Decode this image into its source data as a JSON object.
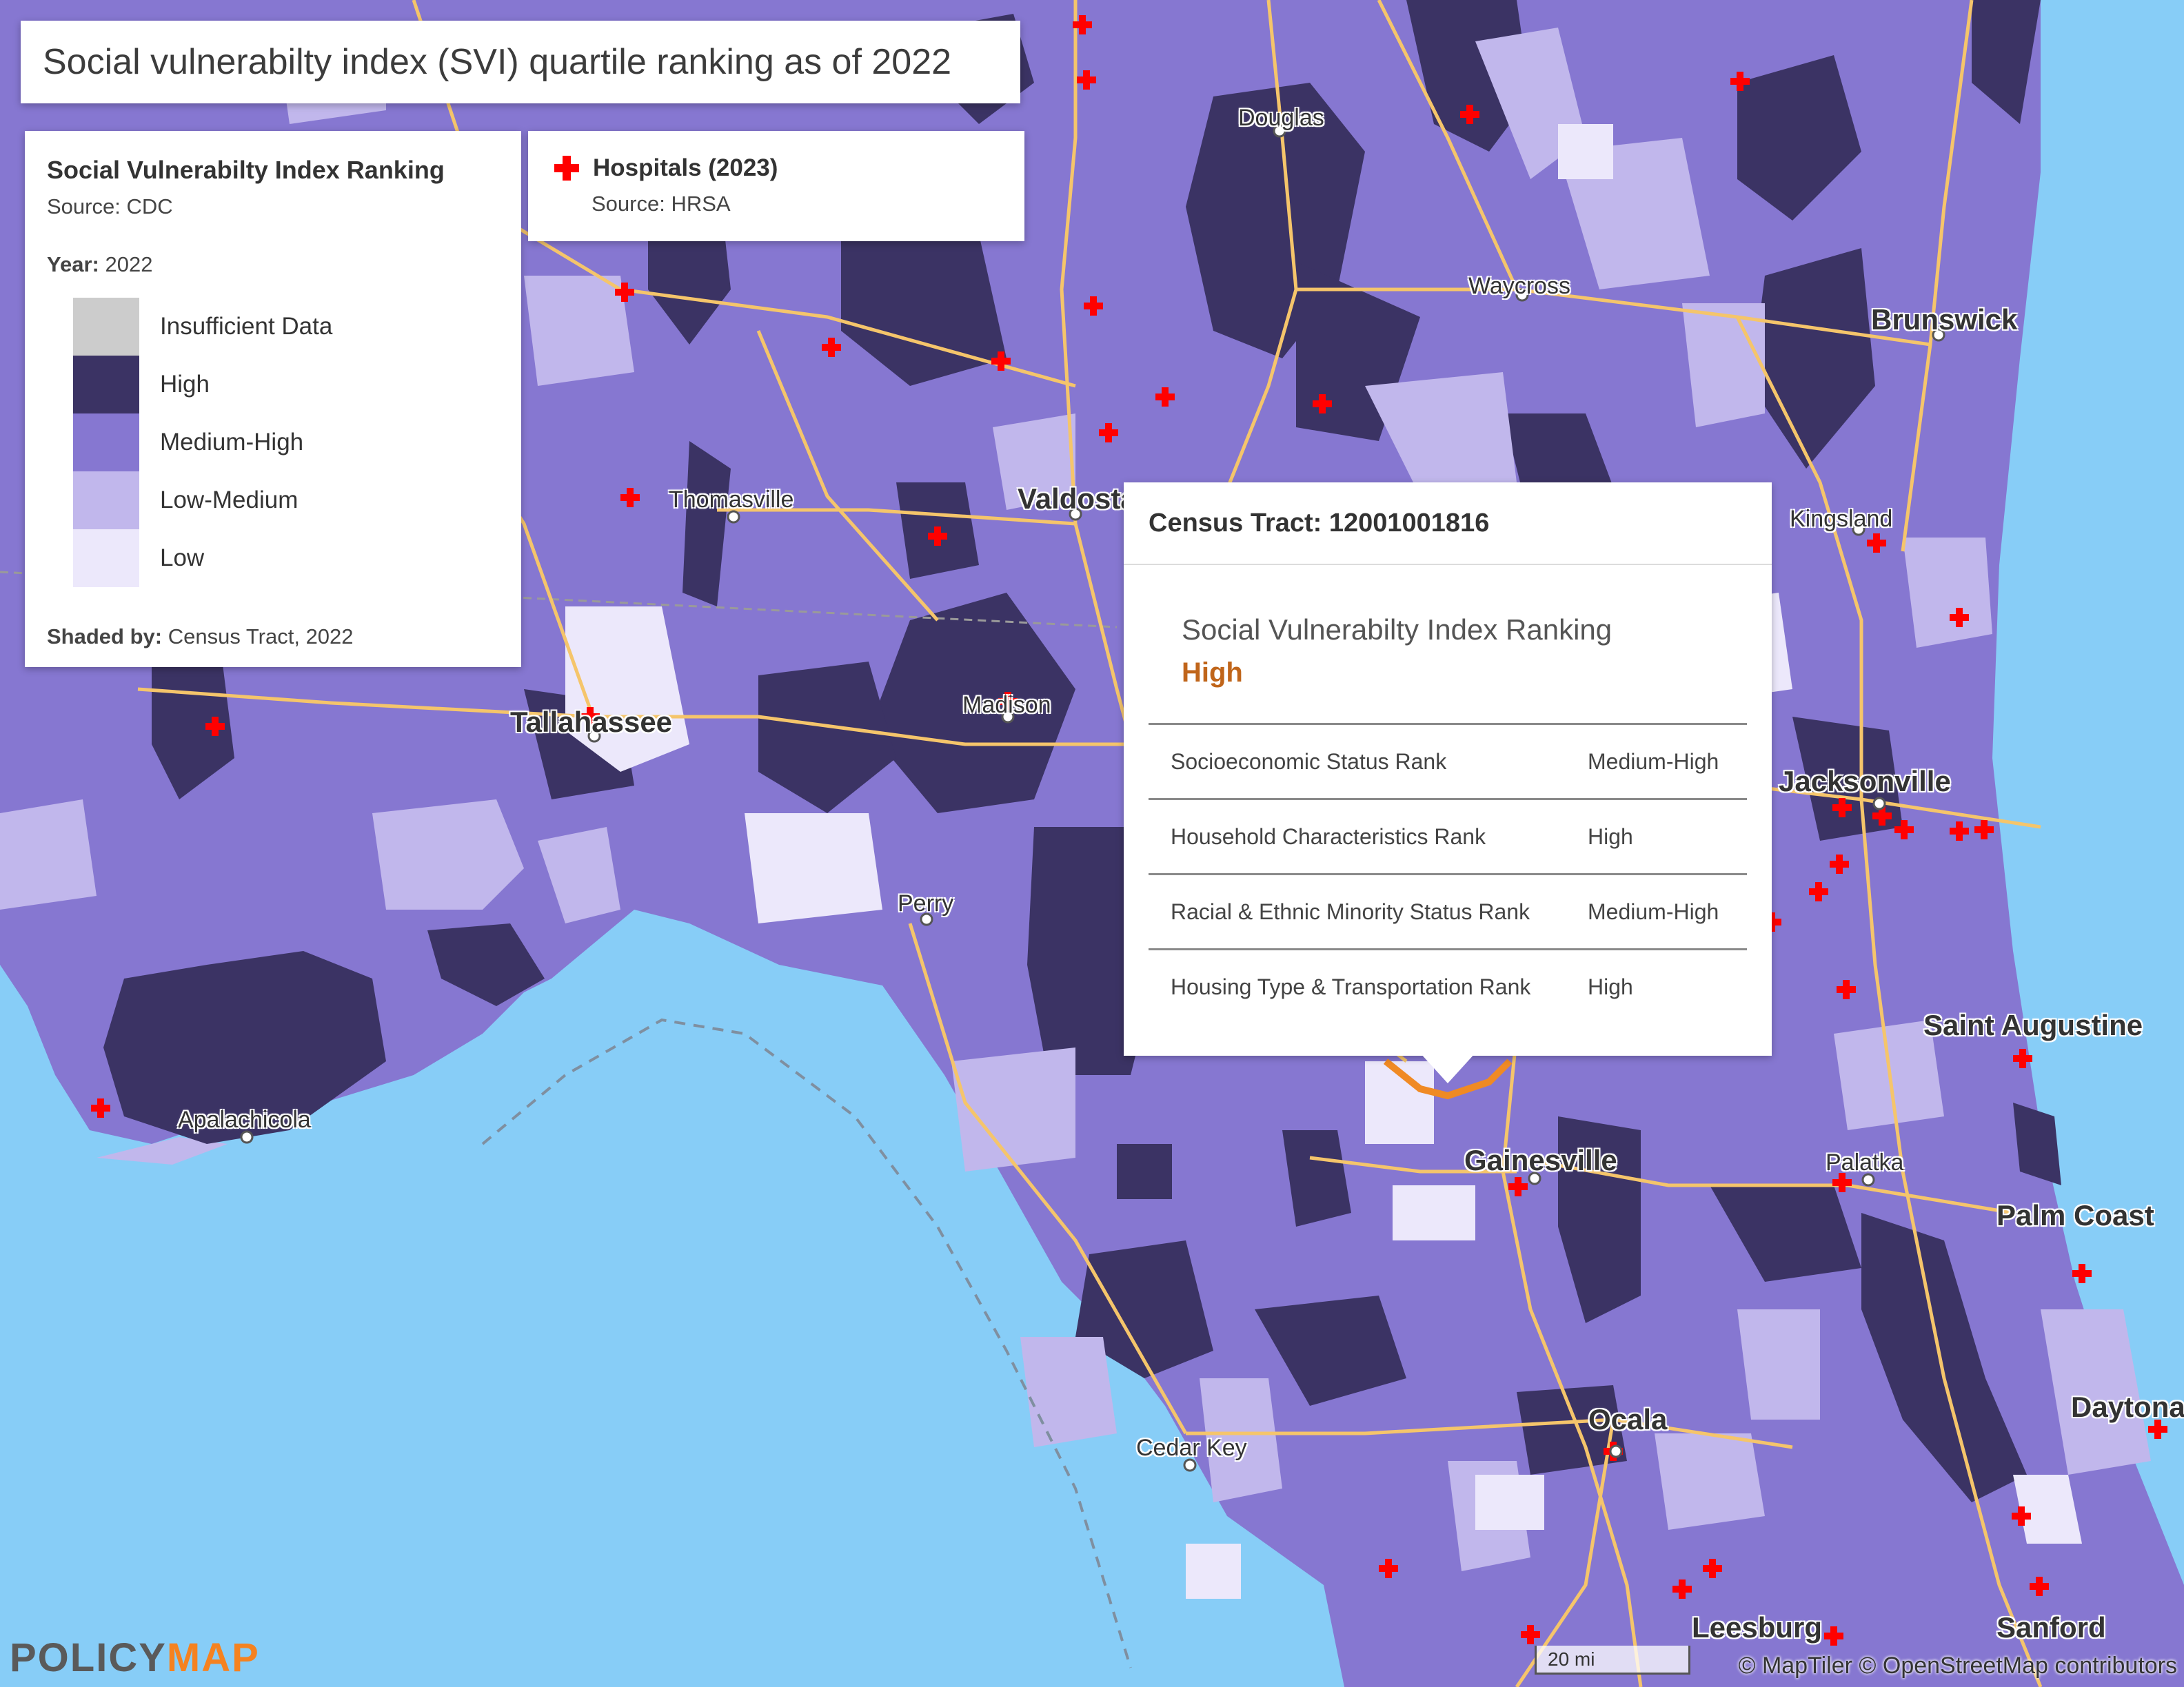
{
  "map_title": "Social vulnerabilty index (SVI) quartile ranking as of 2022",
  "legend": {
    "title": "Social Vulnerabilty Index Ranking",
    "source": "Source: CDC",
    "year_label": "Year:",
    "year_value": "2022",
    "categories": [
      {
        "label": "Insufficient Data",
        "color": "#cccccc"
      },
      {
        "label": "High",
        "color": "#3b3364"
      },
      {
        "label": "Medium-High",
        "color": "#8677d1"
      },
      {
        "label": "Low-Medium",
        "color": "#c1b7ec"
      },
      {
        "label": "Low",
        "color": "#ece8fb"
      }
    ],
    "shaded_label": "Shaded by:",
    "shaded_value": "Census Tract, 2022"
  },
  "hospital_legend": {
    "title": "Hospitals (2023)",
    "source": "Source: HRSA",
    "icon": "red-cross-icon",
    "color": "#ff0000"
  },
  "popup": {
    "header": "Census Tract: 12001001816",
    "indicator_name": "Social Vulnerabilty Index Ranking",
    "indicator_value": "High",
    "rows": [
      {
        "label": "Socioeconomic Status Rank",
        "value": "Medium-High"
      },
      {
        "label": "Household Characteristics Rank",
        "value": "High"
      },
      {
        "label": "Racial & Ethnic Minority Status Rank",
        "value": "Medium-High"
      },
      {
        "label": "Housing Type & Transportation Rank",
        "value": "High"
      }
    ]
  },
  "places": [
    {
      "name": "Douglas",
      "big": false
    },
    {
      "name": "Waycross",
      "big": false
    },
    {
      "name": "Brunswick",
      "big": true
    },
    {
      "name": "Thomasville",
      "big": false
    },
    {
      "name": "Valdosta",
      "big": true
    },
    {
      "name": "Kingsland",
      "big": false
    },
    {
      "name": "Tallahassee",
      "big": true
    },
    {
      "name": "Madison",
      "big": false
    },
    {
      "name": "Jacksonville",
      "big": true
    },
    {
      "name": "Perry",
      "big": false
    },
    {
      "name": "Saint Augustine",
      "big": true
    },
    {
      "name": "Apalachicola",
      "big": false
    },
    {
      "name": "Gainesville",
      "big": true
    },
    {
      "name": "Palatka",
      "big": false
    },
    {
      "name": "Palm Coast",
      "big": true
    },
    {
      "name": "Ocala",
      "big": true
    },
    {
      "name": "Cedar Key",
      "big": false
    },
    {
      "name": "Daytona",
      "big": true
    },
    {
      "name": "Leesburg",
      "big": true
    },
    {
      "name": "Sanford",
      "big": true
    }
  ],
  "colors": {
    "water": "#87cdf7",
    "land_base": "#8677d1",
    "roads": "#f5c56b",
    "selected_tract": "#f08a24",
    "hospital": "#ff0000"
  },
  "logo": {
    "part1": "POLICY",
    "part2": "MAP"
  },
  "scale_label": "20 mi",
  "attribution": "© MapTiler © OpenStreetMap contributors"
}
